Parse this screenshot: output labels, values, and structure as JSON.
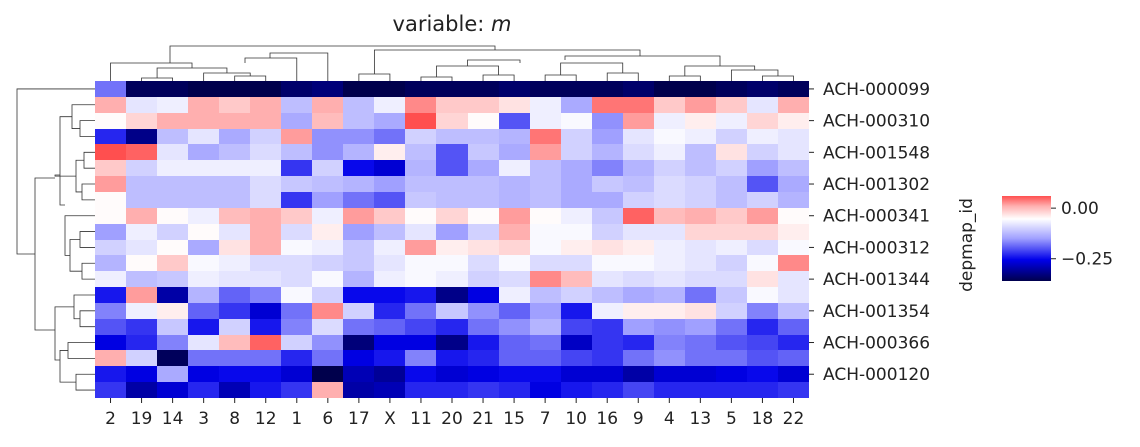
{
  "chart_data": {
    "type": "heatmap",
    "title_prefix": "variable: ",
    "title_var": "m",
    "xlabel": "",
    "ylabel": "depmap_id",
    "columns": [
      "2",
      "19",
      "14",
      "3",
      "8",
      "12",
      "1",
      "6",
      "17",
      "X",
      "11",
      "20",
      "21",
      "15",
      "7",
      "10",
      "16",
      "9",
      "4",
      "13",
      "5",
      "18",
      "22"
    ],
    "row_tick_labels": [
      "ACH-000099",
      "ACH-000310",
      "ACH-001548",
      "ACH-001302",
      "ACH-000341",
      "ACH-000312",
      "ACH-001344",
      "ACH-001354",
      "ACH-000366",
      "ACH-000120"
    ],
    "colorbar": {
      "cmap": "seismic",
      "vmin": -0.36,
      "vmax": 0.06,
      "ticks": [
        0.0,
        -0.25
      ],
      "tick_labels": [
        "0.00",
        "−0.25"
      ]
    },
    "dendrograms": {
      "row": true,
      "column": true
    },
    "values": [
      [
        -0.18,
        -0.35,
        -0.35,
        -0.38,
        -0.36,
        -0.36,
        -0.34,
        -0.33,
        -0.38,
        -0.39,
        -0.35,
        -0.35,
        -0.35,
        -0.34,
        -0.35,
        -0.35,
        -0.35,
        -0.34,
        -0.37,
        -0.36,
        -0.35,
        -0.34,
        -0.35
      ],
      [
        0.01,
        -0.08,
        -0.07,
        0.01,
        -0.01,
        0.01,
        -0.12,
        0.01,
        -0.12,
        -0.07,
        0.03,
        -0.01,
        -0.01,
        -0.03,
        -0.07,
        -0.14,
        0.04,
        0.04,
        -0.01,
        0.02,
        -0.01,
        -0.08,
        0.01
      ],
      [
        -0.05,
        -0.02,
        0.01,
        0.01,
        0.01,
        0.01,
        -0.14,
        0.0,
        -0.12,
        -0.14,
        0.06,
        -0.02,
        -0.05,
        -0.2,
        -0.07,
        -0.06,
        -0.16,
        0.02,
        -0.07,
        -0.04,
        -0.07,
        -0.02,
        -0.04
      ],
      [
        -0.23,
        -0.32,
        -0.12,
        -0.08,
        -0.14,
        -0.1,
        0.02,
        -0.16,
        -0.16,
        -0.18,
        -0.1,
        -0.12,
        -0.12,
        -0.13,
        0.04,
        -0.1,
        -0.15,
        -0.08,
        -0.06,
        -0.07,
        -0.1,
        -0.07,
        -0.08
      ],
      [
        0.06,
        0.05,
        -0.08,
        -0.14,
        -0.12,
        -0.09,
        -0.12,
        -0.16,
        -0.13,
        -0.04,
        -0.12,
        -0.2,
        -0.11,
        -0.14,
        0.02,
        -0.1,
        -0.13,
        -0.09,
        -0.07,
        -0.12,
        -0.03,
        -0.1,
        -0.08
      ],
      [
        -0.01,
        -0.1,
        -0.07,
        -0.07,
        -0.07,
        -0.07,
        -0.22,
        -0.1,
        -0.25,
        -0.27,
        -0.13,
        -0.2,
        -0.14,
        -0.07,
        -0.12,
        -0.14,
        -0.17,
        -0.13,
        -0.1,
        -0.12,
        -0.1,
        -0.15,
        -0.12
      ],
      [
        0.02,
        -0.12,
        -0.12,
        -0.12,
        -0.12,
        -0.09,
        -0.11,
        -0.12,
        -0.13,
        -0.15,
        -0.12,
        -0.12,
        -0.12,
        -0.13,
        -0.12,
        -0.14,
        -0.11,
        -0.12,
        -0.09,
        -0.1,
        -0.12,
        -0.2,
        -0.14
      ],
      [
        -0.05,
        -0.12,
        -0.12,
        -0.12,
        -0.12,
        -0.09,
        -0.22,
        -0.15,
        -0.18,
        -0.2,
        -0.11,
        -0.12,
        -0.12,
        -0.13,
        -0.12,
        -0.14,
        -0.14,
        -0.1,
        -0.09,
        -0.1,
        -0.12,
        -0.1,
        -0.13
      ],
      [
        -0.05,
        0.01,
        -0.05,
        -0.07,
        0.0,
        0.01,
        -0.01,
        -0.07,
        0.02,
        -0.01,
        -0.05,
        -0.02,
        -0.05,
        0.02,
        -0.05,
        -0.07,
        -0.11,
        0.05,
        0.0,
        0.01,
        -0.01,
        0.02,
        -0.05
      ],
      [
        -0.15,
        -0.07,
        -0.1,
        -0.05,
        -0.08,
        0.01,
        -0.09,
        -0.04,
        -0.15,
        -0.12,
        -0.08,
        -0.15,
        -0.1,
        0.01,
        -0.06,
        -0.06,
        -0.1,
        -0.08,
        -0.08,
        -0.02,
        -0.02,
        -0.02,
        -0.04
      ],
      [
        -0.1,
        -0.08,
        -0.05,
        -0.14,
        -0.03,
        0.01,
        -0.06,
        -0.07,
        -0.11,
        -0.07,
        0.02,
        -0.04,
        -0.03,
        -0.02,
        -0.06,
        -0.04,
        -0.03,
        -0.04,
        -0.07,
        -0.08,
        -0.07,
        -0.09,
        -0.06
      ],
      [
        -0.13,
        -0.05,
        -0.01,
        -0.06,
        -0.07,
        -0.09,
        -0.09,
        -0.1,
        -0.11,
        -0.08,
        -0.06,
        -0.06,
        -0.09,
        -0.06,
        -0.09,
        -0.09,
        -0.06,
        -0.06,
        -0.07,
        -0.08,
        -0.1,
        -0.06,
        0.03
      ],
      [
        -0.07,
        -0.12,
        -0.11,
        -0.07,
        -0.08,
        -0.08,
        -0.09,
        -0.06,
        -0.13,
        -0.07,
        -0.06,
        -0.07,
        -0.1,
        -0.09,
        0.03,
        0.0,
        -0.08,
        -0.09,
        -0.08,
        -0.09,
        -0.09,
        -0.03,
        -0.08
      ],
      [
        -0.24,
        0.02,
        -0.3,
        -0.13,
        -0.19,
        -0.17,
        -0.06,
        -0.1,
        -0.25,
        -0.25,
        -0.24,
        -0.32,
        -0.26,
        -0.07,
        -0.12,
        -0.1,
        -0.12,
        -0.14,
        -0.13,
        -0.18,
        -0.11,
        -0.06,
        -0.08
      ],
      [
        -0.17,
        -0.07,
        -0.04,
        -0.19,
        -0.22,
        -0.27,
        -0.18,
        0.03,
        -0.1,
        -0.23,
        -0.18,
        -0.11,
        -0.16,
        -0.19,
        -0.15,
        -0.24,
        -0.07,
        -0.04,
        -0.04,
        -0.03,
        -0.1,
        -0.17,
        -0.12
      ],
      [
        -0.2,
        -0.22,
        -0.11,
        -0.24,
        -0.1,
        -0.24,
        -0.17,
        -0.09,
        -0.18,
        -0.19,
        -0.21,
        -0.23,
        -0.18,
        -0.16,
        -0.13,
        -0.21,
        -0.22,
        -0.15,
        -0.16,
        -0.15,
        -0.18,
        -0.23,
        -0.19
      ],
      [
        -0.26,
        -0.23,
        -0.17,
        -0.08,
        0.0,
        0.05,
        -0.1,
        -0.16,
        -0.33,
        -0.26,
        -0.26,
        -0.32,
        -0.24,
        -0.19,
        -0.18,
        -0.28,
        -0.22,
        -0.23,
        -0.17,
        -0.18,
        -0.2,
        -0.21,
        -0.23
      ],
      [
        0.01,
        -0.1,
        -0.35,
        -0.18,
        -0.18,
        -0.18,
        -0.23,
        -0.18,
        -0.26,
        -0.24,
        -0.17,
        -0.24,
        -0.23,
        -0.19,
        -0.19,
        -0.21,
        -0.22,
        -0.18,
        -0.16,
        -0.18,
        -0.18,
        -0.2,
        -0.19
      ],
      [
        -0.24,
        -0.26,
        -0.14,
        -0.26,
        -0.25,
        -0.25,
        -0.27,
        -0.38,
        -0.29,
        -0.31,
        -0.25,
        -0.27,
        -0.26,
        -0.25,
        -0.25,
        -0.27,
        -0.27,
        -0.3,
        -0.27,
        -0.27,
        -0.26,
        -0.25,
        -0.27
      ],
      [
        -0.22,
        -0.3,
        -0.27,
        -0.23,
        -0.29,
        -0.24,
        -0.22,
        0.01,
        -0.3,
        -0.29,
        -0.23,
        -0.23,
        -0.22,
        -0.23,
        -0.26,
        -0.24,
        -0.23,
        -0.21,
        -0.23,
        -0.23,
        -0.23,
        -0.23,
        -0.22
      ]
    ]
  }
}
